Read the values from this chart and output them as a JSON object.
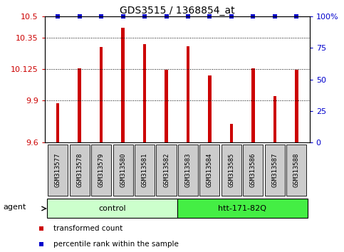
{
  "title": "GDS3515 / 1368854_at",
  "samples": [
    "GSM313577",
    "GSM313578",
    "GSM313579",
    "GSM313580",
    "GSM313581",
    "GSM313582",
    "GSM313583",
    "GSM313584",
    "GSM313585",
    "GSM313586",
    "GSM313587",
    "GSM313588"
  ],
  "values": [
    9.88,
    10.13,
    10.28,
    10.42,
    10.3,
    10.12,
    10.285,
    10.08,
    9.73,
    10.13,
    9.93,
    10.12
  ],
  "percentile": [
    100,
    100,
    100,
    100,
    100,
    100,
    100,
    100,
    100,
    100,
    100,
    100
  ],
  "bar_color": "#cc0000",
  "dot_color": "#0000cc",
  "ylim_left": [
    9.6,
    10.5
  ],
  "yticks_left": [
    9.6,
    9.9,
    10.125,
    10.35,
    10.5
  ],
  "ytick_labels_left": [
    "9.6",
    "9.9",
    "10.125",
    "10.35",
    "10.5"
  ],
  "ylim_right": [
    0,
    100
  ],
  "yticks_right": [
    0,
    25,
    50,
    75,
    100
  ],
  "ytick_labels_right": [
    "0",
    "25",
    "50",
    "75",
    "100%"
  ],
  "groups": [
    {
      "label": "control",
      "start": 0,
      "end": 6,
      "color": "#ccffcc"
    },
    {
      "label": "htt-171-82Q",
      "start": 6,
      "end": 12,
      "color": "#44ee44"
    }
  ],
  "agent_label": "agent",
  "legend_items": [
    {
      "label": "transformed count",
      "color": "#cc0000"
    },
    {
      "label": "percentile rank within the sample",
      "color": "#0000cc"
    }
  ],
  "background_color": "#ffffff",
  "grid_color": "#000000",
  "tick_box_color": "#cccccc",
  "bar_width": 0.15
}
